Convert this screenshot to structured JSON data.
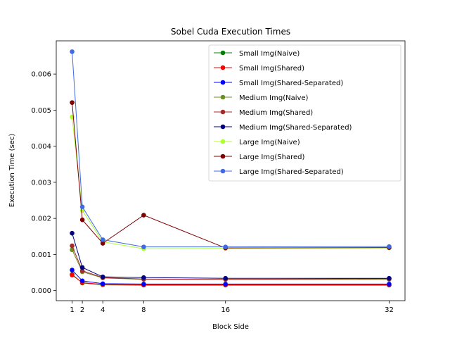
{
  "chart_data": {
    "type": "line",
    "title": "Sobel Cuda Execution Times",
    "xlabel": "Block Side",
    "ylabel": "Execution Time (sec)",
    "x": [
      1,
      2,
      4,
      8,
      16,
      32
    ],
    "xticks": [
      "1",
      "2",
      "4",
      "8",
      "16",
      "32"
    ],
    "yticks": [
      "0.000",
      "0.001",
      "0.002",
      "0.003",
      "0.004",
      "0.005",
      "0.006"
    ],
    "xlim": [
      -0.55,
      33.55
    ],
    "ylim": [
      -0.00028,
      0.00692
    ],
    "grid": false,
    "legend_position": "top-right",
    "series": [
      {
        "name": "Small Img(Naive)",
        "color": "#008000",
        "values": [
          0.00045,
          0.00021,
          0.00016,
          0.00015,
          0.00015,
          0.00015
        ]
      },
      {
        "name": "Small Img(Shared)",
        "color": "#ff0000",
        "values": [
          0.00043,
          0.00022,
          0.00017,
          0.00016,
          0.00016,
          0.00016
        ]
      },
      {
        "name": "Small Img(Shared-Separated)",
        "color": "#0000ff",
        "values": [
          0.00057,
          0.00027,
          0.00019,
          0.00018,
          0.00018,
          0.00018
        ]
      },
      {
        "name": "Medium Img(Naive)",
        "color": "#6b8e23",
        "values": [
          0.00113,
          0.00052,
          0.00035,
          0.00031,
          0.00031,
          0.00031
        ]
      },
      {
        "name": "Medium Img(Shared)",
        "color": "#a52a2a",
        "values": [
          0.00124,
          0.00055,
          0.00036,
          0.00032,
          0.00031,
          0.00033
        ]
      },
      {
        "name": "Medium Img(Shared-Separated)",
        "color": "#000080",
        "values": [
          0.00159,
          0.00064,
          0.00038,
          0.00036,
          0.00034,
          0.00034
        ]
      },
      {
        "name": "Large Img(Naive)",
        "color": "#adff2f",
        "values": [
          0.00481,
          0.00222,
          0.00135,
          0.00116,
          0.00117,
          0.00118
        ]
      },
      {
        "name": "Large Img(Shared)",
        "color": "#800000",
        "values": [
          0.00521,
          0.00196,
          0.00131,
          0.00209,
          0.00118,
          0.00119
        ]
      },
      {
        "name": "Large Img(Shared-Separated)",
        "color": "#4169e1",
        "values": [
          0.00662,
          0.00232,
          0.00141,
          0.00121,
          0.00121,
          0.00122
        ]
      }
    ]
  }
}
